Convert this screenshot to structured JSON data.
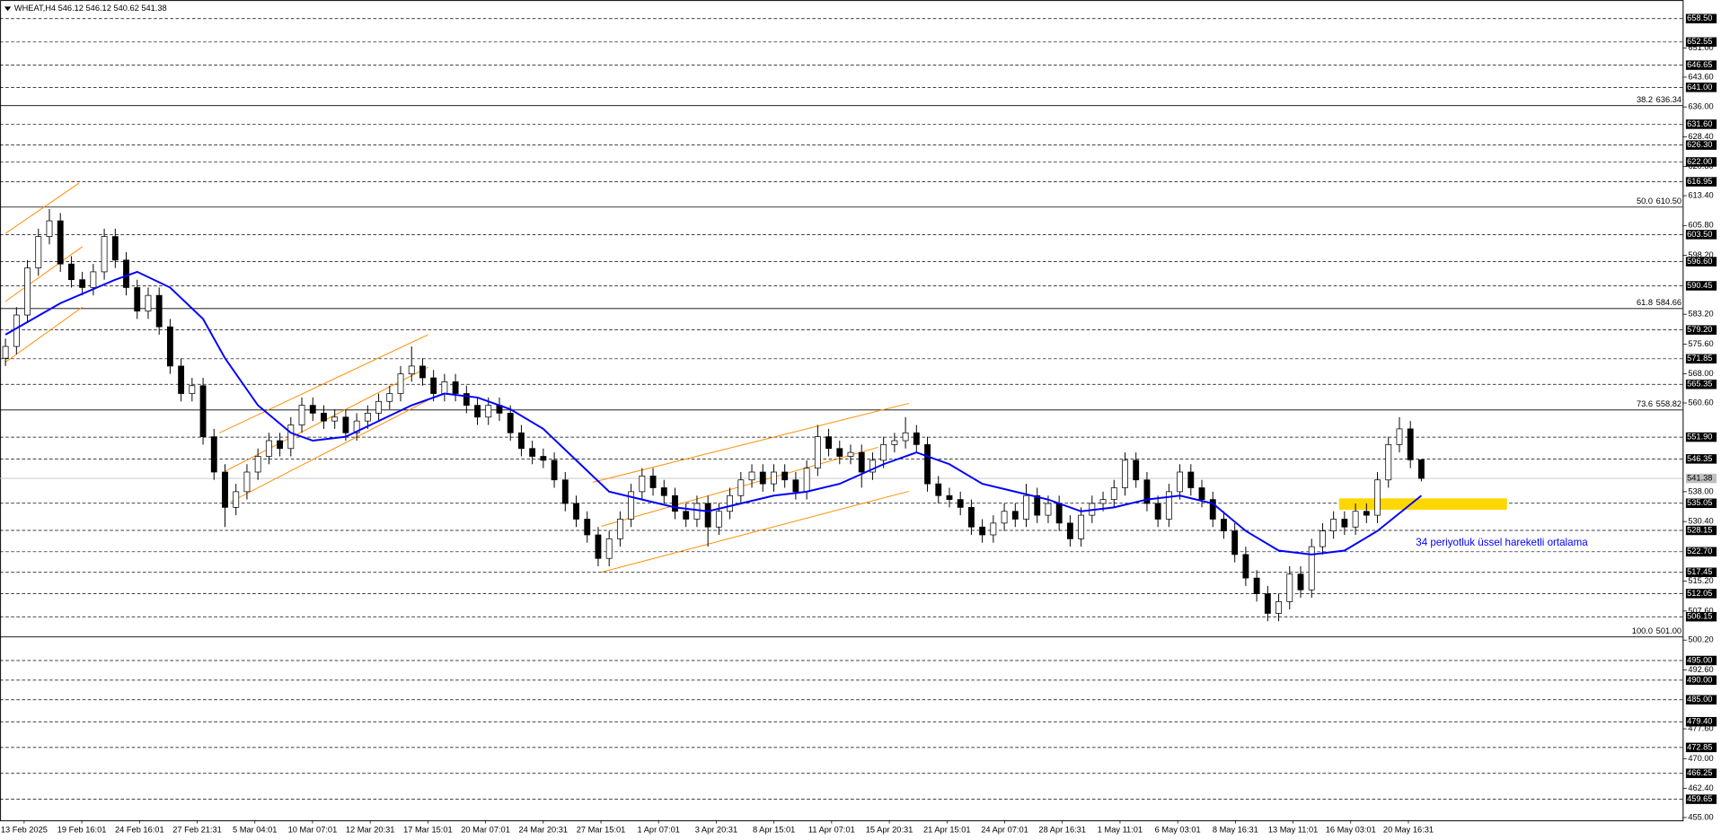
{
  "chart_data": {
    "type": "candlestick",
    "header": "WHEAT,H4  546.12 546.12 540.62 541.38",
    "ylim": [
      454.3,
      663.25
    ],
    "categories": [
      "13 Feb 2025",
      "19 Feb 16:01",
      "24 Feb 16:01",
      "27 Feb 21:31",
      "5 Mar 04:01",
      "10 Mar 07:01",
      "12 Mar 20:31",
      "17 Mar 15:01",
      "20 Mar 07:01",
      "24 Mar 20:31",
      "27 Mar 15:01",
      "1 Apr 07:01",
      "3 Apr 20:31",
      "8 Apr 15:01",
      "11 Apr 07:01",
      "15 Apr 20:31",
      "21 Apr 15:01",
      "24 Apr 07:01",
      "28 Apr 16:31",
      "1 May 11:01",
      "6 May 03:01",
      "8 May 16:31",
      "13 May 11:01",
      "16 May 03:01",
      "20 May 16:31"
    ],
    "ohlc": [
      [
        572,
        577,
        570,
        575
      ],
      [
        575,
        585,
        573,
        583
      ],
      [
        583,
        597,
        581,
        595
      ],
      [
        595,
        605,
        593,
        603
      ],
      [
        603,
        610,
        601,
        607
      ],
      [
        607,
        609,
        594,
        596
      ],
      [
        596,
        598,
        590,
        592
      ],
      [
        592,
        594,
        588,
        590
      ],
      [
        590,
        596,
        588,
        594
      ],
      [
        594,
        605,
        592,
        603
      ],
      [
        603,
        605,
        595,
        597
      ],
      [
        597,
        599,
        588,
        590
      ],
      [
        590,
        592,
        582,
        584
      ],
      [
        584,
        590,
        582,
        588
      ],
      [
        588,
        590,
        578,
        580
      ],
      [
        580,
        582,
        568,
        570
      ],
      [
        570,
        572,
        561,
        563
      ],
      [
        563,
        567,
        561,
        565
      ],
      [
        565,
        567,
        550,
        552
      ],
      [
        552,
        554,
        541,
        543
      ],
      [
        543,
        545,
        529,
        534
      ],
      [
        534,
        540,
        532,
        538
      ],
      [
        538,
        545,
        536,
        543
      ],
      [
        543,
        549,
        541,
        547
      ],
      [
        547,
        553,
        545,
        551
      ],
      [
        551,
        553,
        547,
        549
      ],
      [
        549,
        557,
        547,
        555
      ],
      [
        555,
        562,
        553,
        560
      ],
      [
        560,
        562,
        556,
        558
      ],
      [
        558,
        560,
        554,
        556
      ],
      [
        556,
        559,
        554,
        557
      ],
      [
        557,
        559,
        551,
        553
      ],
      [
        553,
        558,
        551,
        556
      ],
      [
        556,
        560,
        554,
        558
      ],
      [
        558,
        563,
        556,
        561
      ],
      [
        561,
        565,
        559,
        563
      ],
      [
        563,
        570,
        561,
        568
      ],
      [
        568,
        575,
        566,
        570
      ],
      [
        570,
        572,
        565,
        567
      ],
      [
        567,
        569,
        561,
        563
      ],
      [
        563,
        568,
        561,
        566
      ],
      [
        566,
        568,
        561,
        563
      ],
      [
        563,
        565,
        558,
        560
      ],
      [
        560,
        562,
        555,
        557
      ],
      [
        557,
        562,
        555,
        560
      ],
      [
        560,
        562,
        556,
        558
      ],
      [
        558,
        560,
        551,
        553
      ],
      [
        553,
        555,
        547,
        549
      ],
      [
        549,
        551,
        545,
        547
      ],
      [
        547,
        549,
        544,
        546
      ],
      [
        546,
        548,
        539,
        541
      ],
      [
        541,
        543,
        533,
        535
      ],
      [
        535,
        537,
        529,
        531
      ],
      [
        531,
        533,
        525,
        527
      ],
      [
        527,
        529,
        519,
        521
      ],
      [
        521,
        528,
        519,
        526
      ],
      [
        526,
        533,
        524,
        531
      ],
      [
        531,
        540,
        529,
        538
      ],
      [
        538,
        544,
        536,
        542
      ],
      [
        542,
        544,
        537,
        539
      ],
      [
        539,
        541,
        535,
        537
      ],
      [
        537,
        539,
        531,
        533
      ],
      [
        533,
        535,
        529,
        531
      ],
      [
        531,
        537,
        529,
        535
      ],
      [
        535,
        537,
        524,
        529
      ],
      [
        529,
        535,
        527,
        533
      ],
      [
        533,
        539,
        531,
        537
      ],
      [
        537,
        543,
        535,
        541
      ],
      [
        541,
        545,
        539,
        543
      ],
      [
        543,
        545,
        538,
        540
      ],
      [
        540,
        545,
        538,
        543
      ],
      [
        543,
        545,
        539,
        541
      ],
      [
        541,
        543,
        536,
        538
      ],
      [
        538,
        546,
        536,
        544
      ],
      [
        544,
        555,
        542,
        552
      ],
      [
        552,
        554,
        547,
        549
      ],
      [
        549,
        551,
        545,
        547
      ],
      [
        547,
        550,
        545,
        548
      ],
      [
        548,
        550,
        539,
        543
      ],
      [
        543,
        548,
        541,
        546
      ],
      [
        546,
        552,
        544,
        550
      ],
      [
        550,
        553,
        548,
        551
      ],
      [
        551,
        557,
        549,
        553
      ],
      [
        553,
        555,
        548,
        550
      ],
      [
        550,
        552,
        538,
        540
      ],
      [
        540,
        542,
        535,
        537
      ],
      [
        537,
        539,
        534,
        536
      ],
      [
        536,
        538,
        532,
        534
      ],
      [
        534,
        536,
        527,
        529
      ],
      [
        529,
        531,
        525,
        527
      ],
      [
        527,
        532,
        525,
        530
      ],
      [
        530,
        535,
        528,
        533
      ],
      [
        533,
        535,
        529,
        531
      ],
      [
        531,
        540,
        529,
        537
      ],
      [
        537,
        539,
        530,
        532
      ],
      [
        532,
        537,
        530,
        535
      ],
      [
        535,
        537,
        528,
        530
      ],
      [
        530,
        532,
        524,
        526
      ],
      [
        526,
        534,
        524,
        532
      ],
      [
        532,
        537,
        530,
        535
      ],
      [
        535,
        538,
        533,
        536
      ],
      [
        536,
        541,
        534,
        539
      ],
      [
        539,
        548,
        537,
        546
      ],
      [
        546,
        548,
        539,
        541
      ],
      [
        541,
        543,
        533,
        535
      ],
      [
        535,
        537,
        529,
        531
      ],
      [
        531,
        540,
        529,
        538
      ],
      [
        538,
        545,
        536,
        543
      ],
      [
        543,
        545,
        537,
        539
      ],
      [
        539,
        541,
        534,
        536
      ],
      [
        536,
        538,
        529,
        531
      ],
      [
        531,
        533,
        526,
        528
      ],
      [
        528,
        530,
        520,
        522
      ],
      [
        522,
        524,
        514,
        516
      ],
      [
        516,
        518,
        510,
        512
      ],
      [
        512,
        514,
        505,
        507
      ],
      [
        507,
        512,
        505,
        510
      ],
      [
        510,
        519,
        508,
        517
      ],
      [
        517,
        519,
        511,
        513
      ],
      [
        513,
        526,
        511,
        524
      ],
      [
        524,
        530,
        522,
        528
      ],
      [
        528,
        533,
        526,
        531
      ],
      [
        531,
        533,
        527,
        529
      ],
      [
        529,
        535,
        527,
        533
      ],
      [
        533,
        535,
        530,
        532
      ],
      [
        532,
        543,
        530,
        541
      ],
      [
        541,
        552,
        539,
        550
      ],
      [
        550,
        557,
        548,
        554
      ],
      [
        554,
        556,
        544,
        546.12
      ],
      [
        546.12,
        546.12,
        540.62,
        541.38
      ]
    ],
    "ema": {
      "name": "34 periyotluk üssel hareketli ortalama",
      "color": "#0000ff",
      "x": [
        0,
        5,
        10,
        12,
        15,
        18,
        20,
        23,
        26,
        28,
        31,
        34,
        37,
        40,
        43,
        46,
        49,
        52,
        55,
        58,
        61,
        64,
        67,
        70,
        73,
        76,
        80,
        83,
        86,
        89,
        92,
        95,
        98,
        101,
        104,
        107,
        110,
        113,
        116,
        119,
        122,
        125,
        129
      ],
      "values": [
        578,
        586,
        592,
        594,
        590,
        582,
        572,
        560,
        553,
        551,
        552,
        556,
        560,
        563,
        562,
        559,
        554,
        546,
        538,
        536,
        534,
        533,
        535,
        537,
        538,
        540,
        545,
        548,
        545,
        540,
        538,
        536,
        533,
        534,
        536,
        537,
        535,
        528,
        523,
        522,
        523,
        528,
        537
      ]
    },
    "trendlines": {
      "color": "#ff8c00",
      "lines": [
        [
          0,
          603.8,
          6.7,
          616.6
        ],
        [
          0,
          586.5,
          7,
          600.4
        ],
        [
          0,
          571,
          7,
          585
        ],
        [
          19.5,
          553,
          38.5,
          578
        ],
        [
          20,
          543.2,
          38.5,
          569.7
        ],
        [
          20.5,
          535.4,
          38.5,
          561.3
        ],
        [
          53.5,
          540.4,
          82.3,
          560.5
        ],
        [
          54.3,
          529.2,
          79.5,
          549.3
        ],
        [
          54.3,
          517.5,
          82.3,
          538.1
        ]
      ]
    },
    "zone": {
      "color": "#ffd700",
      "x": [
        121.5,
        136.8
      ],
      "y": [
        533.4,
        536.3
      ]
    },
    "fib": [
      {
        "level": "38.2",
        "value": 636.34,
        "label": "636.34"
      },
      {
        "level": "50.0",
        "value": 610.5,
        "label": "610.50"
      },
      {
        "level": "61.8",
        "value": 584.66,
        "label": "584.66"
      },
      {
        "level": "73.6",
        "value": 558.82,
        "label": "558.82"
      },
      {
        "level": "100.0",
        "value": 501,
        "label": "501.00"
      }
    ],
    "last_price": {
      "value": 541.38,
      "label": "541.38"
    },
    "hlines": [
      {
        "value": 658.5,
        "label": "658.50"
      },
      {
        "value": 652.55,
        "label": "652.55"
      },
      {
        "value": 646.65,
        "label": "646.65"
      },
      {
        "value": 641,
        "label": "641.00"
      },
      {
        "value": 631.6,
        "label": "631.60"
      },
      {
        "value": 626.3,
        "label": "626.30"
      },
      {
        "value": 622,
        "label": "622.00"
      },
      {
        "value": 616.95,
        "label": "616.95"
      },
      {
        "value": 603.5,
        "label": "603.50"
      },
      {
        "value": 596.6,
        "label": "596.60"
      },
      {
        "value": 590.45,
        "label": "590.45"
      },
      {
        "value": 579.2,
        "label": "579.20"
      },
      {
        "value": 571.85,
        "label": "571.85"
      },
      {
        "value": 565.35,
        "label": "565.35"
      },
      {
        "value": 551.9,
        "label": "551.90"
      },
      {
        "value": 546.35,
        "label": "546.35"
      },
      {
        "value": 535.05,
        "label": "535.05"
      },
      {
        "value": 528.15,
        "label": "528.15"
      },
      {
        "value": 522.7,
        "label": "522.70"
      },
      {
        "value": 517.45,
        "label": "517.45"
      },
      {
        "value": 512.05,
        "label": "512.05"
      },
      {
        "value": 506.15,
        "label": "506.15"
      },
      {
        "value": 495,
        "label": "495.00"
      },
      {
        "value": 490,
        "label": "490.00"
      },
      {
        "value": 485,
        "label": "485.00"
      },
      {
        "value": 479.4,
        "label": "479.40"
      },
      {
        "value": 472.85,
        "label": "472.85"
      },
      {
        "value": 466.25,
        "label": "466.25"
      },
      {
        "value": 459.65,
        "label": "459.65"
      }
    ],
    "yticks": [
      {
        "value": 651,
        "label": "651.00"
      },
      {
        "value": 643.6,
        "label": "643.60"
      },
      {
        "value": 636,
        "label": "636.00"
      },
      {
        "value": 628.4,
        "label": "628.40"
      },
      {
        "value": 620.8,
        "label": "620.80"
      },
      {
        "value": 613.4,
        "label": "613.40"
      },
      {
        "value": 605.8,
        "label": "605.80"
      },
      {
        "value": 598.2,
        "label": "598.20"
      },
      {
        "value": 583.2,
        "label": "583.20"
      },
      {
        "value": 575.6,
        "label": "575.60"
      },
      {
        "value": 568,
        "label": "568.00"
      },
      {
        "value": 560.6,
        "label": "560.60"
      },
      {
        "value": 538,
        "label": "538.00"
      },
      {
        "value": 530.4,
        "label": "530.40"
      },
      {
        "value": 515.2,
        "label": "515.20"
      },
      {
        "value": 507.6,
        "label": "507.60"
      },
      {
        "value": 500.2,
        "label": "500.20"
      },
      {
        "value": 492.6,
        "label": "492.60"
      },
      {
        "value": 477.6,
        "label": "477.60"
      },
      {
        "value": 470,
        "label": "470.00"
      },
      {
        "value": 462.4,
        "label": "462.40"
      },
      {
        "value": 455,
        "label": "455.00"
      }
    ]
  }
}
